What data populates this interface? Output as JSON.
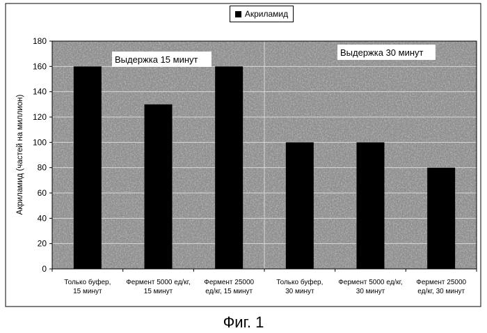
{
  "chart_data": {
    "type": "bar",
    "categories": [
      [
        "Только буфер,",
        "15 минут"
      ],
      [
        "Фермент  5000 ед/кг,",
        "15 минут"
      ],
      [
        "Фермент  25000",
        "ед/кг, 15 минут"
      ],
      [
        "Только буфер,",
        "30 минут"
      ],
      [
        "Фермент  5000 ед/кг,",
        "30 минут"
      ],
      [
        "Фермент  25000",
        "ед/кг, 30 минут"
      ]
    ],
    "series": [
      {
        "name": "Акриламид",
        "values": [
          160,
          130,
          160,
          100,
          100,
          80
        ]
      }
    ],
    "data_labels": [
      "160",
      "",
      "160",
      "",
      "",
      ""
    ],
    "ylabel": "Акриламид (частей на миллион)",
    "ylim": [
      0,
      180
    ],
    "yticks": [
      0,
      20,
      40,
      60,
      80,
      100,
      120,
      140,
      160,
      180
    ],
    "grid": true,
    "legend": "top-center",
    "annotations": [
      "Выдержка 15 минут",
      "Выдержка 30 минут"
    ],
    "bar_color": "#000000",
    "plot_background": "#8a8a8a",
    "gridline_color": "#d8d8d8"
  },
  "caption": "Фиг. 1"
}
